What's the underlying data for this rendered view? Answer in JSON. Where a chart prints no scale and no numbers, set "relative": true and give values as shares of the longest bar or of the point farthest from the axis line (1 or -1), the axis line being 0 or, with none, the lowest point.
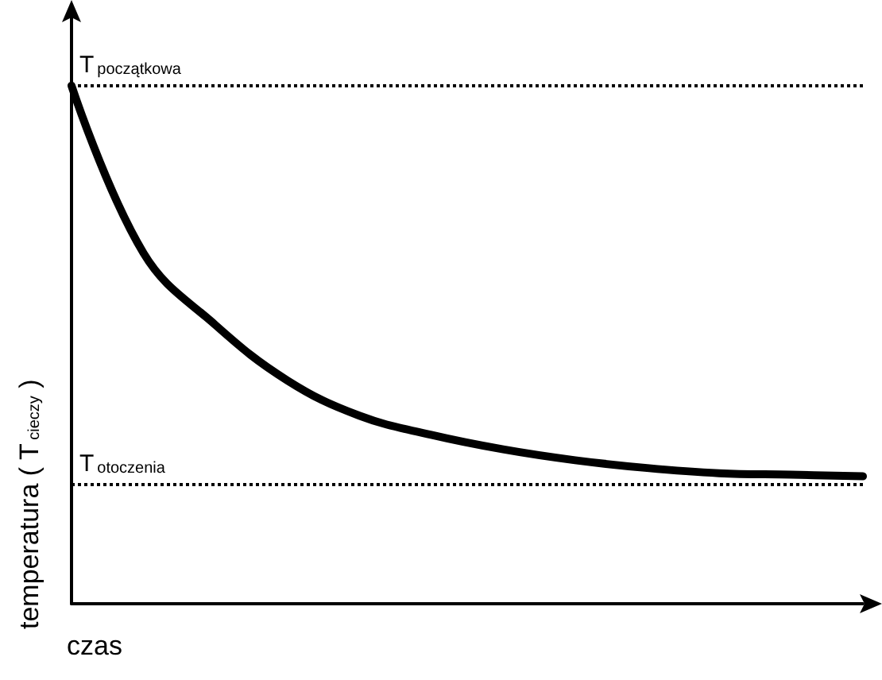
{
  "chart_data": {
    "type": "line",
    "relative": true,
    "xlabel": "czas",
    "ylabel": "temperatura ( T$_{cieczy}$ )",
    "categories": [
      null,
      null,
      null,
      null,
      null,
      null,
      null,
      null,
      null,
      null,
      null,
      null
    ],
    "series": [
      {
        "color": "#000000",
        "values": [
          1,
          0.677,
          0.538,
          0.431,
          0.363,
          0.326,
          0.298,
          0.277,
          0.262,
          0.252,
          0.249,
          0.246
        ]
      }
    ],
    "ref_lines": [
      {
        "axis": "y",
        "value": 1,
        "label": "T$_{początkowa}$",
        "color": "#000000",
        "line_style": "dotted"
      },
      {
        "axis": "y",
        "value": 0.23,
        "label": "T$_{otoczenia}$",
        "color": "#000000",
        "line_style": "dotted"
      }
    ],
    "grid": false,
    "marker": "none",
    "line_style": "solid"
  }
}
